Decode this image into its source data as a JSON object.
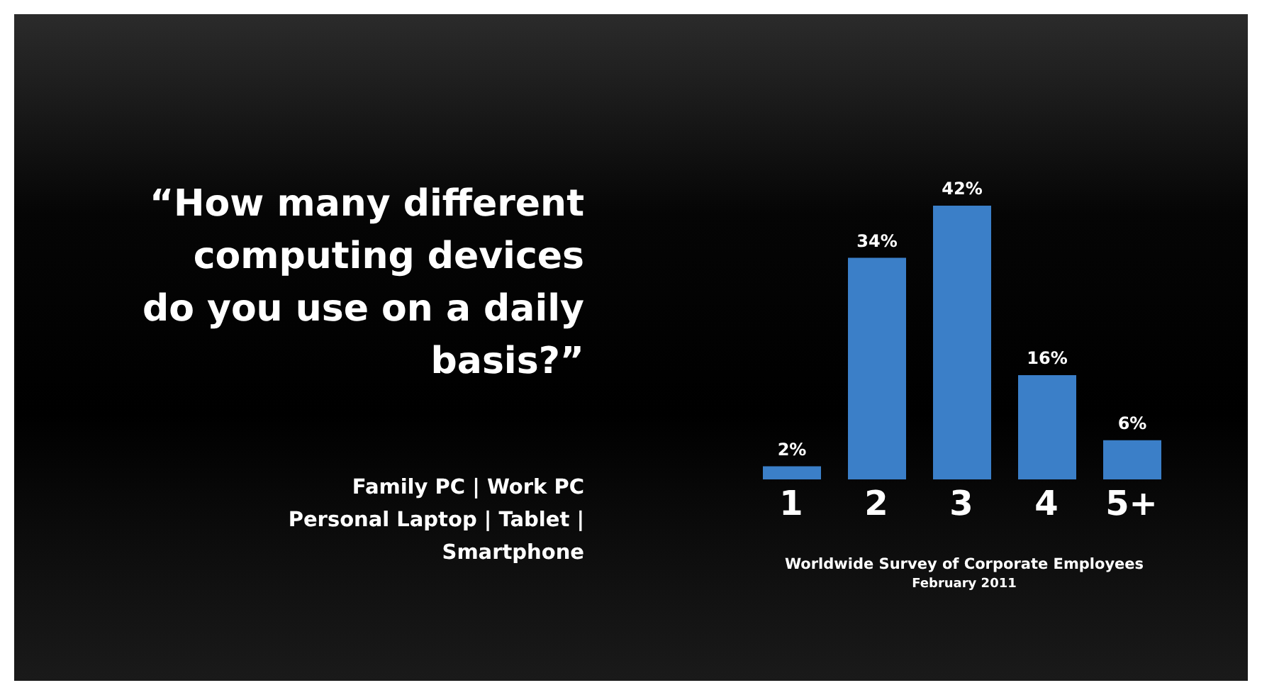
{
  "chart_data": {
    "type": "bar",
    "title": "“How many different computing devices do you use on a daily basis?”",
    "subtitle": "Family PC | Work PC Personal Laptop | Tablet | Smartphone",
    "categories": [
      "1",
      "2",
      "3",
      "4",
      "5+"
    ],
    "values": [
      2,
      34,
      42,
      16,
      6
    ],
    "value_labels": [
      "2%",
      "34%",
      "42%",
      "16%",
      "6%"
    ],
    "color": "#3b7fc8",
    "annotations": [
      "Worldwide Survey of Corporate Employees",
      "February 2011"
    ]
  }
}
